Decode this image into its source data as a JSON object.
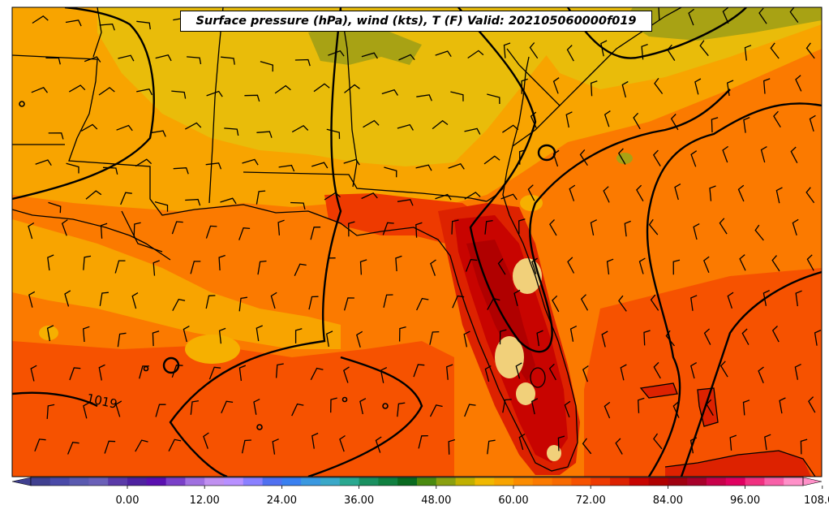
{
  "map": {
    "title": "Surface pressure (hPa), wind (kts), T (F) Valid: 202105060000f019",
    "isobar_label": "1019",
    "fill_colors": {
      "cool_base": "#f8a400",
      "warm": "#fb7a00",
      "warmer": "#f65200",
      "hot": "#dd2200",
      "hotter": "#c80400",
      "hottest": "#b00000",
      "olive": "#a8a214",
      "khaki": "#e9bc0a",
      "pale": "#f1d07a"
    },
    "colorbar": {
      "tick_labels": [
        "0.00",
        "12.00",
        "24.00",
        "36.00",
        "48.00",
        "60.00",
        "72.00",
        "84.00",
        "96.00",
        "108.00"
      ],
      "colors": [
        "#404090",
        "#4a4aa8",
        "#5a5ab0",
        "#6a60b8",
        "#5a3aa8",
        "#4e22a0",
        "#5a10b0",
        "#7a40c8",
        "#a070e0",
        "#c090f0",
        "#b890ff",
        "#8a80ff",
        "#5070f0",
        "#3a80f0",
        "#3a98e0",
        "#3aa8c8",
        "#2aa890",
        "#1a9060",
        "#108040",
        "#0a6a20",
        "#4a8a10",
        "#8aa010",
        "#c0b000",
        "#f0b800",
        "#f8a400",
        "#fb8c00",
        "#fb7a00",
        "#f86a00",
        "#f65200",
        "#ee3a00",
        "#dd2200",
        "#c80400",
        "#b00000",
        "#a00010",
        "#a8002a",
        "#c8004a",
        "#e00060",
        "#f03080",
        "#f860a8",
        "#ff90c8"
      ]
    }
  }
}
